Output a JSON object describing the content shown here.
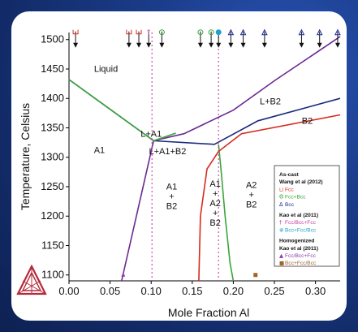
{
  "chart_data": {
    "type": "line",
    "xlabel": "Mole Fraction Al",
    "ylabel": "Temperature, Celsius",
    "xlim": [
      0.0,
      0.33
    ],
    "ylim": [
      1090,
      1512
    ],
    "xticks": [
      "0.00",
      "0.05",
      "0.10",
      "0.15",
      "0.20",
      "0.25",
      "0.30"
    ],
    "yticks": [
      "1100",
      "1150",
      "1200",
      "1250",
      "1300",
      "1350",
      "1400",
      "1450",
      "1500"
    ],
    "region_labels": [
      {
        "text": "Liquid",
        "x": 0.045,
        "y": 1445
      },
      {
        "text": "L+B2",
        "x": 0.245,
        "y": 1390
      },
      {
        "text": "B2",
        "x": 0.29,
        "y": 1357
      },
      {
        "text": "L+A1",
        "x": 0.1,
        "y": 1335
      },
      {
        "text": "L+A1+B2",
        "x": 0.12,
        "y": 1305
      },
      {
        "text": "A1",
        "x": 0.037,
        "y": 1307
      },
      {
        "text": "A1\n+\nB2",
        "x": 0.125,
        "y": 1245
      },
      {
        "text": "A1\n+\nA2\n+\nB2",
        "x": 0.178,
        "y": 1250
      },
      {
        "text": "A2\n+\nB2",
        "x": 0.222,
        "y": 1248
      }
    ],
    "series": [
      {
        "color": "#1a2a7a",
        "points": [
          [
            0,
            1432
          ],
          [
            0.103,
            1328
          ],
          [
            0.177,
            1322
          ],
          [
            0.23,
            1362
          ],
          [
            0.33,
            1400
          ]
        ]
      },
      {
        "color": "#6a2a90",
        "points": [
          [
            0.064,
            1090
          ],
          [
            0.103,
            1328
          ]
        ]
      },
      {
        "color": "#6a2a90",
        "points": [
          [
            0.103,
            1328
          ],
          [
            0.14,
            1340
          ],
          [
            0.2,
            1380
          ],
          [
            0.25,
            1430
          ],
          [
            0.33,
            1505
          ]
        ]
      },
      {
        "color": "#3aa53a",
        "points": [
          [
            0,
            1432
          ],
          [
            0.103,
            1328
          ]
        ]
      },
      {
        "color": "#3aa53a",
        "points": [
          [
            0.182,
            1322
          ],
          [
            0.185,
            1280
          ],
          [
            0.19,
            1200
          ],
          [
            0.196,
            1120
          ],
          [
            0.2,
            1090
          ]
        ]
      },
      {
        "color": "#3aa53a",
        "points": [
          [
            0.103,
            1328
          ],
          [
            0.13,
            1341
          ]
        ]
      },
      {
        "color": "#d62b1f",
        "points": [
          [
            0.158,
            1090
          ],
          [
            0.16,
            1200
          ],
          [
            0.168,
            1280
          ],
          [
            0.182,
            1310
          ],
          [
            0.21,
            1340
          ],
          [
            0.33,
            1372
          ]
        ]
      },
      {
        "color": "#c83aa0",
        "dashed": true,
        "points": [
          [
            0.101,
            1512
          ],
          [
            0.101,
            1090
          ]
        ]
      },
      {
        "color": "#c83aa0",
        "dashed": true,
        "points": [
          [
            0.182,
            1512
          ],
          [
            0.182,
            1090
          ]
        ]
      }
    ],
    "experiment_markers": [
      {
        "x": 0.008,
        "y": 1500,
        "symbol": "Fcc-bracket",
        "color": "#d62b1f"
      },
      {
        "x": 0.073,
        "y": 1500,
        "symbol": "Fcc-bracket",
        "color": "#d62b1f"
      },
      {
        "x": 0.085,
        "y": 1500,
        "symbol": "Fcc-bracket",
        "color": "#d62b1f"
      },
      {
        "x": 0.097,
        "y": 1500,
        "symbol": "Fcc/Bcc+Fcc",
        "color": "#c83aa0"
      },
      {
        "x": 0.113,
        "y": 1500,
        "symbol": "Fcc+Bcc",
        "color": "#3aa53a"
      },
      {
        "x": 0.16,
        "y": 1500,
        "symbol": "Fcc+Bcc",
        "color": "#3aa53a"
      },
      {
        "x": 0.173,
        "y": 1500,
        "symbol": "Fcc+Bcc",
        "color": "#3aa53a"
      },
      {
        "x": 0.182,
        "y": 1500,
        "symbol": "Bcc+Fcc/Bcc",
        "color": "#1da0d0"
      },
      {
        "x": 0.197,
        "y": 1500,
        "symbol": "Bcc",
        "color": "#1a2a9a"
      },
      {
        "x": 0.212,
        "y": 1500,
        "symbol": "Bcc",
        "color": "#1a2a9a"
      },
      {
        "x": 0.238,
        "y": 1500,
        "symbol": "Bcc",
        "color": "#1a2a9a"
      },
      {
        "x": 0.283,
        "y": 1500,
        "symbol": "Bcc",
        "color": "#1a2a9a"
      },
      {
        "x": 0.305,
        "y": 1500,
        "symbol": "Bcc",
        "color": "#1a2a9a"
      },
      {
        "x": 0.327,
        "y": 1500,
        "symbol": "Bcc",
        "color": "#1a2a9a"
      }
    ],
    "point_markers": [
      {
        "x": 0.066,
        "y": 1100,
        "symbol": "triangle",
        "color": "#8a3ab0"
      },
      {
        "x": 0.227,
        "y": 1100,
        "symbol": "square",
        "color": "#a0642a"
      }
    ],
    "legend": {
      "placement": "lower-right",
      "items": [
        {
          "text": "As-cast",
          "bold": true
        },
        {
          "text": "Wang et al (2012)",
          "bold": true
        },
        {
          "text": "Fcc",
          "color": "#d62b1f",
          "glyph": "bracket"
        },
        {
          "text": "Fcc+Bcc",
          "color": "#3aa53a",
          "glyph": "Θ"
        },
        {
          "text": "Bcc",
          "color": "#1a2a9a",
          "glyph": "Δ"
        },
        {
          "text": "Kao et al (2011)",
          "bold": true
        },
        {
          "text": "Fcc/Bcc+Fcc",
          "color": "#c83aa0",
          "glyph": "†"
        },
        {
          "text": "Bcc+Fcc/Bcc",
          "color": "#1da0d0",
          "glyph": "⊕"
        },
        {
          "text": "Homogenized",
          "bold": true
        },
        {
          "text": "Kao et al (2011)",
          "bold": true
        },
        {
          "text": "Fcc/Bcc+Fcc",
          "color": "#8a3ab0",
          "glyph": "▲"
        },
        {
          "text": "Bcc+Fcc/Bcc",
          "color": "#a0642a",
          "glyph": "■"
        }
      ]
    }
  },
  "logo": {
    "name": "Thermo-Calc logo",
    "color": "#b52a3a"
  }
}
